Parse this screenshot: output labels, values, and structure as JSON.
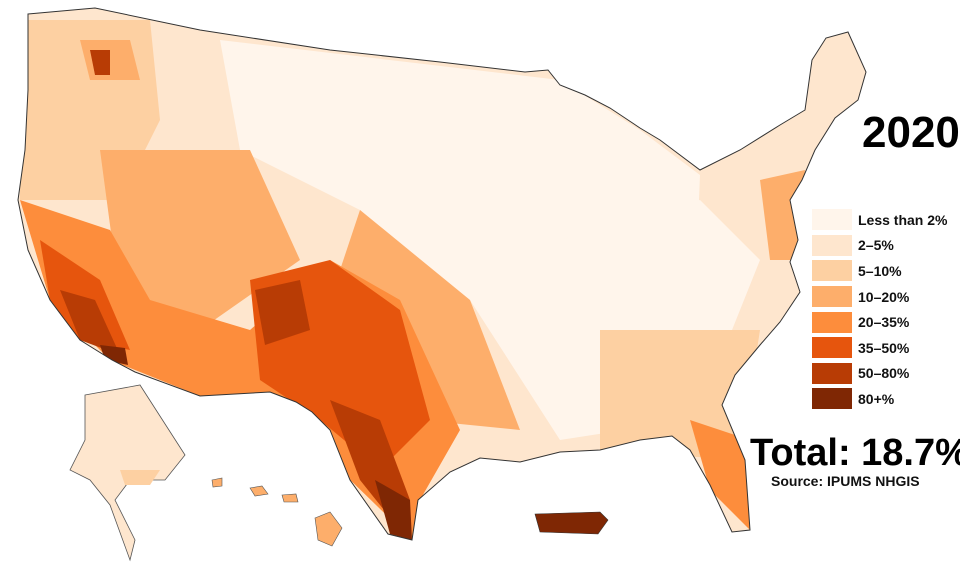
{
  "title": "2020",
  "total": "Total: 18.7%",
  "source": "Source: IPUMS NHGIS",
  "legend": [
    {
      "label": "Less than 2%",
      "color": "#fff5eb"
    },
    {
      "label": "2–5%",
      "color": "#fee6ce"
    },
    {
      "label": "5–10%",
      "color": "#fdd0a2"
    },
    {
      "label": "10–20%",
      "color": "#fdae6b"
    },
    {
      "label": "20–35%",
      "color": "#fd8d3c"
    },
    {
      "label": "35–50%",
      "color": "#e6550d"
    },
    {
      "label": "50–80%",
      "color": "#b83c05"
    },
    {
      "label": "80+%",
      "color": "#7f2704"
    }
  ]
}
